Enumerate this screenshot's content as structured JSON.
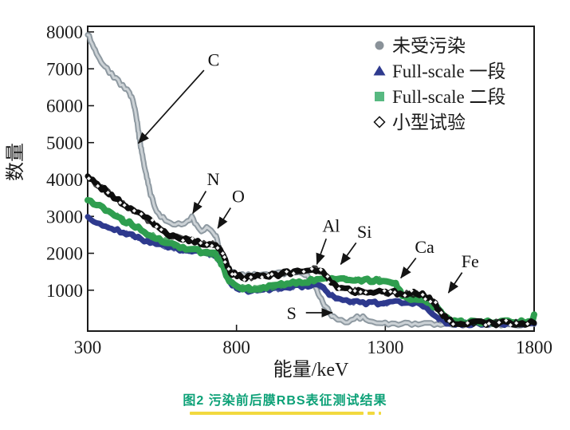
{
  "figure": {
    "caption": "图2  污染前后膜RBS表征测试结果",
    "caption_color": "#0ca177",
    "underline_color": "#f2d93f"
  },
  "chart_data": {
    "type": "line",
    "title": "",
    "xlabel": "能量/keV",
    "ylabel": "数量",
    "xlim": [
      300,
      1800
    ],
    "ylim": [
      0,
      8000
    ],
    "x_ticks": [
      300,
      800,
      1300,
      1800
    ],
    "y_ticks": [
      1000,
      2000,
      3000,
      4000,
      5000,
      6000,
      7000,
      8000
    ],
    "grid": false,
    "frame": "box",
    "legend_position": "top-right-inside",
    "axis_color": "#1a1a1a",
    "series": [
      {
        "name": "未受污染",
        "marker": "circle",
        "color": "#8e99a1",
        "highlight_color": "#ccd2d6",
        "legend_color": "#8a9299",
        "points": [
          [
            300,
            7950
          ],
          [
            320,
            7600
          ],
          [
            350,
            7150
          ],
          [
            380,
            6850
          ],
          [
            410,
            6600
          ],
          [
            440,
            6350
          ],
          [
            452,
            6150
          ],
          [
            465,
            5600
          ],
          [
            478,
            4900
          ],
          [
            492,
            4300
          ],
          [
            508,
            3700
          ],
          [
            525,
            3250
          ],
          [
            545,
            3000
          ],
          [
            570,
            2870
          ],
          [
            595,
            2790
          ],
          [
            615,
            2780
          ],
          [
            635,
            2900
          ],
          [
            650,
            2960
          ],
          [
            665,
            2760
          ],
          [
            682,
            2630
          ],
          [
            700,
            2700
          ],
          [
            715,
            2660
          ],
          [
            728,
            2520
          ],
          [
            742,
            2150
          ],
          [
            756,
            1780
          ],
          [
            772,
            1540
          ],
          [
            800,
            1430
          ],
          [
            840,
            1400
          ],
          [
            880,
            1410
          ],
          [
            920,
            1430
          ],
          [
            960,
            1460
          ],
          [
            1000,
            1480
          ],
          [
            1030,
            1430
          ],
          [
            1055,
            1230
          ],
          [
            1080,
            850
          ],
          [
            1100,
            550
          ],
          [
            1120,
            330
          ],
          [
            1140,
            170
          ],
          [
            1165,
            130
          ],
          [
            1185,
            180
          ],
          [
            1205,
            260
          ],
          [
            1225,
            250
          ],
          [
            1245,
            160
          ],
          [
            1270,
            95
          ],
          [
            1310,
            80
          ],
          [
            1400,
            78
          ],
          [
            1550,
            75
          ],
          [
            1700,
            78
          ],
          [
            1800,
            80
          ]
        ]
      },
      {
        "name": "Full-scale 一段",
        "marker": "triangle",
        "color": "#2e3a8e",
        "legend_color": "#2e3a8e",
        "points": [
          [
            300,
            2950
          ],
          [
            340,
            2810
          ],
          [
            380,
            2680
          ],
          [
            420,
            2560
          ],
          [
            460,
            2440
          ],
          [
            500,
            2330
          ],
          [
            540,
            2240
          ],
          [
            580,
            2160
          ],
          [
            620,
            2090
          ],
          [
            660,
            2040
          ],
          [
            700,
            1995
          ],
          [
            728,
            1955
          ],
          [
            748,
            1780
          ],
          [
            763,
            1480
          ],
          [
            779,
            1220
          ],
          [
            800,
            1060
          ],
          [
            840,
            980
          ],
          [
            880,
            995
          ],
          [
            920,
            1025
          ],
          [
            960,
            1060
          ],
          [
            1000,
            1095
          ],
          [
            1040,
            1125
          ],
          [
            1068,
            1135
          ],
          [
            1092,
            1060
          ],
          [
            1112,
            910
          ],
          [
            1132,
            790
          ],
          [
            1158,
            710
          ],
          [
            1205,
            665
          ],
          [
            1255,
            650
          ],
          [
            1305,
            660
          ],
          [
            1355,
            670
          ],
          [
            1392,
            655
          ],
          [
            1418,
            615
          ],
          [
            1438,
            515
          ],
          [
            1458,
            375
          ],
          [
            1478,
            235
          ],
          [
            1496,
            135
          ],
          [
            1525,
            100
          ],
          [
            1600,
            95
          ],
          [
            1700,
            95
          ],
          [
            1800,
            95
          ]
        ]
      },
      {
        "name": "Full-scale 二段",
        "marker": "square",
        "color": "#2f9e4f",
        "legend_color": "#57b981",
        "points": [
          [
            300,
            3450
          ],
          [
            340,
            3260
          ],
          [
            380,
            3080
          ],
          [
            420,
            2900
          ],
          [
            460,
            2720
          ],
          [
            500,
            2550
          ],
          [
            540,
            2390
          ],
          [
            580,
            2260
          ],
          [
            620,
            2160
          ],
          [
            660,
            2080
          ],
          [
            700,
            2020
          ],
          [
            728,
            1980
          ],
          [
            745,
            1820
          ],
          [
            760,
            1520
          ],
          [
            776,
            1260
          ],
          [
            800,
            1110
          ],
          [
            840,
            1030
          ],
          [
            880,
            1060
          ],
          [
            920,
            1100
          ],
          [
            960,
            1150
          ],
          [
            1000,
            1200
          ],
          [
            1040,
            1250
          ],
          [
            1080,
            1290
          ],
          [
            1130,
            1310
          ],
          [
            1180,
            1300
          ],
          [
            1230,
            1280
          ],
          [
            1280,
            1265
          ],
          [
            1315,
            1250
          ],
          [
            1335,
            1150
          ],
          [
            1350,
            950
          ],
          [
            1365,
            810
          ],
          [
            1395,
            770
          ],
          [
            1420,
            745
          ],
          [
            1442,
            660
          ],
          [
            1462,
            580
          ],
          [
            1482,
            470
          ],
          [
            1500,
            310
          ],
          [
            1515,
            190
          ],
          [
            1532,
            135
          ],
          [
            1600,
            128
          ],
          [
            1700,
            132
          ],
          [
            1780,
            140
          ],
          [
            1792,
            190
          ],
          [
            1800,
            340
          ]
        ]
      },
      {
        "name": "小型试验",
        "marker": "open-diamond",
        "color": "#0e0e0e",
        "legend_color": "#111111",
        "points": [
          [
            300,
            4050
          ],
          [
            340,
            3820
          ],
          [
            380,
            3580
          ],
          [
            420,
            3350
          ],
          [
            460,
            3130
          ],
          [
            500,
            2920
          ],
          [
            540,
            2700
          ],
          [
            575,
            2500
          ],
          [
            610,
            2400
          ],
          [
            650,
            2330
          ],
          [
            690,
            2280
          ],
          [
            720,
            2240
          ],
          [
            740,
            2180
          ],
          [
            755,
            1950
          ],
          [
            770,
            1650
          ],
          [
            785,
            1450
          ],
          [
            810,
            1370
          ],
          [
            850,
            1350
          ],
          [
            890,
            1380
          ],
          [
            930,
            1420
          ],
          [
            970,
            1470
          ],
          [
            1005,
            1520
          ],
          [
            1035,
            1570
          ],
          [
            1058,
            1590
          ],
          [
            1078,
            1540
          ],
          [
            1098,
            1400
          ],
          [
            1118,
            1200
          ],
          [
            1140,
            1050
          ],
          [
            1165,
            1000
          ],
          [
            1210,
            970
          ],
          [
            1260,
            945
          ],
          [
            1310,
            935
          ],
          [
            1360,
            920
          ],
          [
            1395,
            905
          ],
          [
            1425,
            870
          ],
          [
            1448,
            780
          ],
          [
            1468,
            600
          ],
          [
            1488,
            390
          ],
          [
            1508,
            210
          ],
          [
            1528,
            130
          ],
          [
            1565,
            110
          ],
          [
            1650,
            105
          ],
          [
            1750,
            108
          ],
          [
            1800,
            112
          ]
        ]
      }
    ],
    "annotations": [
      {
        "label": "C",
        "text_at": [
          723,
          7250
        ],
        "arrow_to": [
          470,
          4980
        ]
      },
      {
        "label": "N",
        "text_at": [
          722,
          4020
        ],
        "arrow_to": [
          653,
          3080
        ]
      },
      {
        "label": "O",
        "text_at": [
          806,
          3560
        ],
        "arrow_to": [
          737,
          2680
        ]
      },
      {
        "label": "Al",
        "text_at": [
          1118,
          2760
        ],
        "arrow_to": [
          1070,
          1700
        ]
      },
      {
        "label": "Si",
        "text_at": [
          1230,
          2600
        ],
        "arrow_to": [
          1150,
          1700
        ]
      },
      {
        "label": "Ca",
        "text_at": [
          1432,
          2180
        ],
        "arrow_to": [
          1352,
          1330
        ]
      },
      {
        "label": "Fe",
        "text_at": [
          1585,
          1800
        ],
        "arrow_to": [
          1512,
          930
        ]
      },
      {
        "label": "S",
        "text_at": [
          985,
          390
        ],
        "arrow_to": [
          1122,
          390
        ]
      }
    ]
  }
}
